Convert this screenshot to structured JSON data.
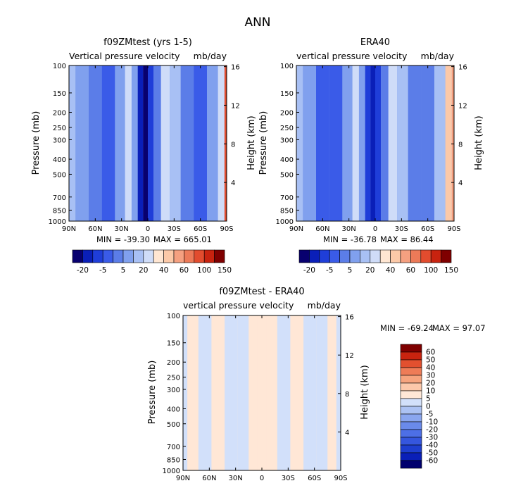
{
  "figure_title": "ANN",
  "colors": {
    "blue_scale": [
      "#08006f",
      "#0a1fb8",
      "#1f3ed9",
      "#3a5be8",
      "#5b7de8",
      "#80a0ee",
      "#a8c0f4",
      "#cfdcf8",
      "#ffe6d2",
      "#fcc9a8",
      "#f5a080",
      "#ec7a58",
      "#e24c2e",
      "#c8230f",
      "#7f0000"
    ],
    "diff_scale": [
      "#00006e",
      "#0a1fb8",
      "#1e3ecf",
      "#3556de",
      "#4d6fe6",
      "#6a8aea",
      "#8aa6ef",
      "#acc2f3",
      "#d2e0fa",
      "#ffe7d6",
      "#fcc8aa",
      "#f6a47e",
      "#ee7c57",
      "#e2502f",
      "#c8230f",
      "#7f0000"
    ]
  },
  "chart_data": [
    {
      "type": "heatmap",
      "id": "model",
      "title": "f09ZMtest (yrs 1-5)",
      "subtitle_left": "Vertical pressure velocity",
      "subtitle_right": "mb/day",
      "ylabel": "Pressure (mb)",
      "ylabel_right": "Height (km)",
      "x_ticks": [
        "90N",
        "60N",
        "30N",
        "0",
        "30S",
        "60S",
        "90S"
      ],
      "y_ticks": [
        100,
        150,
        200,
        250,
        300,
        400,
        500,
        700,
        850,
        1000
      ],
      "height_ticks": [
        16,
        12,
        8,
        4
      ],
      "ylim": [
        1000,
        100
      ],
      "log_scale": true,
      "min_label": "MIN = -39.30",
      "max_label": "MAX = 665.01",
      "colorbar_labels": [
        "-20",
        "-5",
        "5",
        "20",
        "40",
        "60",
        "100",
        "150"
      ],
      "field": [
        {
          "lat": 90,
          "level": 6
        },
        {
          "lat": 75,
          "level": 5
        },
        {
          "lat": 60,
          "level": 4
        },
        {
          "lat": 45,
          "level": 3
        },
        {
          "lat": 30,
          "level": 5
        },
        {
          "lat": 22,
          "level": 7
        },
        {
          "lat": 15,
          "level": 5
        },
        {
          "lat": 8,
          "level": 1
        },
        {
          "lat": 3,
          "level": 0
        },
        {
          "lat": -3,
          "level": 2
        },
        {
          "lat": -10,
          "level": 4
        },
        {
          "lat": -20,
          "level": 7
        },
        {
          "lat": -30,
          "level": 6
        },
        {
          "lat": -45,
          "level": 4
        },
        {
          "lat": -60,
          "level": 3
        },
        {
          "lat": -75,
          "level": 5
        },
        {
          "lat": -85,
          "level": 7
        },
        {
          "lat": -90,
          "level": 12
        }
      ]
    },
    {
      "type": "heatmap",
      "id": "obs",
      "title": "ERA40",
      "subtitle_left": "vertical pressure velocity",
      "subtitle_right": "mb/day",
      "ylabel": "Pressure (mb)",
      "ylabel_right": "Height (km)",
      "x_ticks": [
        "90N",
        "60N",
        "30N",
        "0",
        "30S",
        "60S",
        "90S"
      ],
      "y_ticks": [
        100,
        150,
        200,
        250,
        300,
        400,
        500,
        700,
        850,
        1000
      ],
      "height_ticks": [
        16,
        12,
        8,
        4
      ],
      "ylim": [
        1000,
        100
      ],
      "log_scale": true,
      "min_label": "MIN = -36.78",
      "max_label": "MAX = 86.44",
      "colorbar_labels": [
        "-20",
        "-5",
        "5",
        "20",
        "40",
        "60",
        "100",
        "150"
      ],
      "field": [
        {
          "lat": 90,
          "level": 6
        },
        {
          "lat": 75,
          "level": 5
        },
        {
          "lat": 60,
          "level": 3
        },
        {
          "lat": 45,
          "level": 3
        },
        {
          "lat": 30,
          "level": 5
        },
        {
          "lat": 22,
          "level": 7
        },
        {
          "lat": 15,
          "level": 5
        },
        {
          "lat": 8,
          "level": 2
        },
        {
          "lat": 3,
          "level": 1
        },
        {
          "lat": -3,
          "level": 2
        },
        {
          "lat": -10,
          "level": 4
        },
        {
          "lat": -20,
          "level": 7
        },
        {
          "lat": -30,
          "level": 6
        },
        {
          "lat": -45,
          "level": 4
        },
        {
          "lat": -60,
          "level": 4
        },
        {
          "lat": -75,
          "level": 6
        },
        {
          "lat": -85,
          "level": 9
        },
        {
          "lat": -90,
          "level": 10
        }
      ]
    },
    {
      "type": "heatmap",
      "id": "diff",
      "title": "f09ZMtest - ERA40",
      "subtitle_left": "vertical pressure velocity",
      "subtitle_right": "mb/day",
      "ylabel": "Pressure (mb)",
      "ylabel_right": "Height (km)",
      "x_ticks": [
        "90N",
        "60N",
        "30N",
        "0",
        "30S",
        "60S",
        "90S"
      ],
      "y_ticks": [
        100,
        150,
        200,
        250,
        300,
        400,
        500,
        700,
        850,
        1000
      ],
      "height_ticks": [
        16,
        12,
        8,
        4
      ],
      "ylim": [
        1000,
        100
      ],
      "log_scale": true,
      "min_label": "MIN = -69.24",
      "max_label": "MAX = 97.07",
      "colorbar_labels": [
        "60",
        "50",
        "40",
        "30",
        "20",
        "10",
        "5",
        "0",
        "-5",
        "-10",
        "-20",
        "-30",
        "-40",
        "-50",
        "-60"
      ],
      "field": [
        {
          "lat": 90,
          "level": 8
        },
        {
          "lat": 80,
          "level": 9
        },
        {
          "lat": 65,
          "level": 8
        },
        {
          "lat": 50,
          "level": 9
        },
        {
          "lat": 35,
          "level": 8
        },
        {
          "lat": 20,
          "level": 8
        },
        {
          "lat": 10,
          "level": 9
        },
        {
          "lat": 0,
          "level": 9
        },
        {
          "lat": -10,
          "level": 9
        },
        {
          "lat": -25,
          "level": 8
        },
        {
          "lat": -40,
          "level": 9
        },
        {
          "lat": -55,
          "level": 8
        },
        {
          "lat": -70,
          "level": 8
        },
        {
          "lat": -80,
          "level": 9
        },
        {
          "lat": -90,
          "level": 8
        }
      ]
    }
  ]
}
